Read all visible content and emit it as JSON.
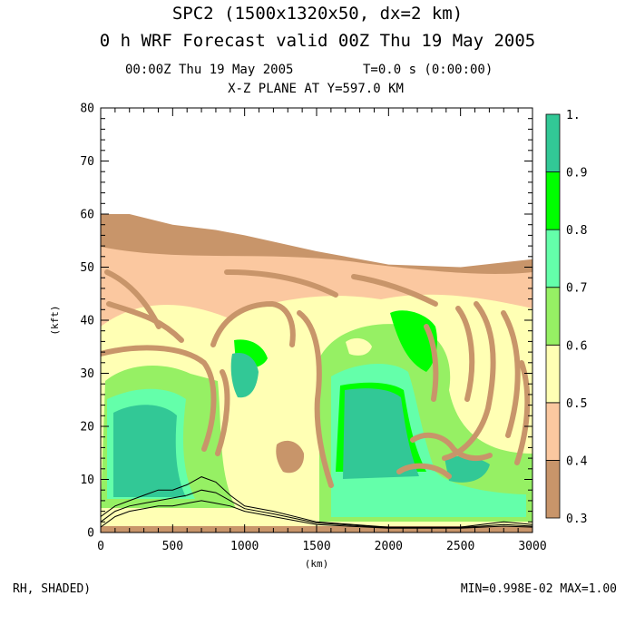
{
  "header": {
    "title_line1": "SPC2 (1500x1320x50, dx=2 km)",
    "title_line2": "0 h WRF Forecast valid 00Z Thu 19 May 2005",
    "subtitle_time": "00:00Z Thu 19 May 2005",
    "subtitle_timestep": "T=0.0 s (0:00:00)",
    "subtitle_plane": "X-Z PLANE AT Y=597.0 KM"
  },
  "footer": {
    "field_label": "RH, SHADED)",
    "min_max": "MIN=0.998E-02 MAX=1.00"
  },
  "chart_data": {
    "type": "heatmap",
    "xlabel": "(km)",
    "ylabel": "(kft)",
    "xlim": [
      0,
      3000
    ],
    "ylim": [
      0,
      80
    ],
    "x_ticks": [
      0,
      500,
      1000,
      1500,
      2000,
      2500,
      3000
    ],
    "y_ticks": [
      0,
      10,
      20,
      30,
      40,
      50,
      60,
      70,
      80
    ],
    "x_tick_labels": [
      "0",
      "500",
      "1000",
      "1500",
      "2000",
      "2500",
      "3000"
    ],
    "y_tick_labels": [
      "0",
      "10",
      "20",
      "30",
      "40",
      "50",
      "60",
      "70",
      "80"
    ],
    "colorbar": {
      "levels": [
        0.3,
        0.4,
        0.5,
        0.6,
        0.7,
        0.8,
        0.9,
        1.0
      ],
      "level_labels": [
        "0.3",
        "0.4",
        "0.5",
        "0.6",
        "0.7",
        "0.8",
        "0.9",
        "1."
      ],
      "colors": [
        "#c8956a",
        "#fbc8a0",
        "#ffffb4",
        "#96f064",
        "#64ffaa",
        "#00ff00",
        "#32c896"
      ]
    },
    "field_top_height": [
      [
        0,
        60
      ],
      [
        200,
        60
      ],
      [
        500,
        58
      ],
      [
        800,
        57
      ],
      [
        1000,
        56
      ],
      [
        1500,
        53
      ],
      [
        2000,
        50.5
      ],
      [
        2500,
        50
      ],
      [
        3000,
        51.5
      ]
    ],
    "terrain_contours": [
      [
        [
          0,
          3
        ],
        [
          100,
          5
        ],
        [
          200,
          6
        ],
        [
          300,
          7
        ],
        [
          400,
          8
        ],
        [
          500,
          8
        ],
        [
          600,
          9
        ],
        [
          700,
          10.5
        ],
        [
          800,
          9.5
        ],
        [
          900,
          7
        ],
        [
          1000,
          5
        ],
        [
          1200,
          4
        ],
        [
          1500,
          2
        ],
        [
          2000,
          1
        ],
        [
          2500,
          1
        ],
        [
          2800,
          2
        ],
        [
          3000,
          1.5
        ]
      ],
      [
        [
          0,
          2
        ],
        [
          100,
          4
        ],
        [
          200,
          5
        ],
        [
          300,
          5.5
        ],
        [
          400,
          6
        ],
        [
          500,
          6.5
        ],
        [
          600,
          7
        ],
        [
          700,
          8
        ],
        [
          800,
          7.5
        ],
        [
          900,
          6
        ],
        [
          1000,
          4.5
        ],
        [
          1200,
          3.5
        ],
        [
          1500,
          1.8
        ],
        [
          2000,
          0.9
        ],
        [
          2500,
          0.9
        ],
        [
          2800,
          1.5
        ],
        [
          3000,
          1.2
        ]
      ],
      [
        [
          0,
          1
        ],
        [
          100,
          3
        ],
        [
          200,
          4
        ],
        [
          300,
          4.5
        ],
        [
          400,
          5
        ],
        [
          500,
          5
        ],
        [
          600,
          5.5
        ],
        [
          700,
          6
        ],
        [
          800,
          5.5
        ],
        [
          900,
          5
        ],
        [
          1000,
          4
        ],
        [
          1200,
          3
        ],
        [
          1500,
          1.5
        ],
        [
          2000,
          0.8
        ],
        [
          2500,
          0.8
        ],
        [
          2800,
          1.2
        ],
        [
          3000,
          1
        ]
      ]
    ]
  }
}
